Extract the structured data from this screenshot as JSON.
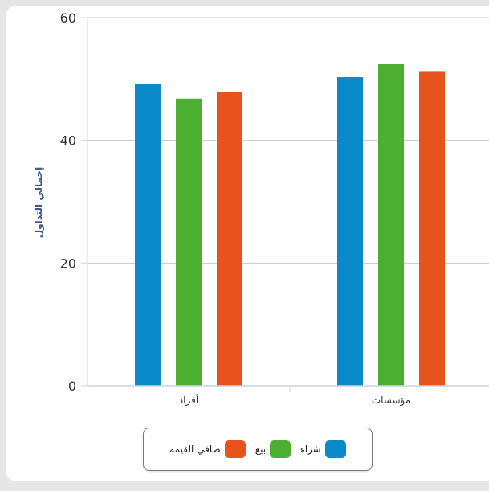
{
  "chart_data": {
    "type": "bar",
    "categories": [
      "أفراد",
      "مؤسسات"
    ],
    "series": [
      {
        "name": "شراء",
        "color": "#0a8ac8",
        "values": [
          49.2,
          50.3
        ]
      },
      {
        "name": "بيع",
        "color": "#4daf32",
        "values": [
          46.8,
          52.4
        ]
      },
      {
        "name": "صافي القيمة",
        "color": "#e8531d",
        "values": [
          47.9,
          51.3
        ]
      }
    ],
    "title": "",
    "xlabel": "",
    "ylabel": "إجمالي التداول",
    "ylim": [
      0,
      60
    ],
    "yticks": [
      0,
      20,
      40,
      60
    ],
    "grid": true,
    "legend_position": "bottom-center"
  }
}
